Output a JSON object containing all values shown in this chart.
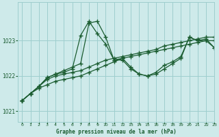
{
  "background_color": "#ceeaea",
  "grid_color": "#9ecece",
  "line_color": "#1a5c30",
  "title": "Graphe pression niveau de la mer (hPa)",
  "xlim": [
    -0.5,
    23
  ],
  "ylim": [
    1020.7,
    1024.1
  ],
  "yticks": [
    1021,
    1022,
    1023
  ],
  "xticks": [
    0,
    1,
    2,
    3,
    4,
    5,
    6,
    7,
    8,
    9,
    10,
    11,
    12,
    13,
    14,
    15,
    16,
    17,
    18,
    19,
    20,
    21,
    22,
    23
  ],
  "series": [
    {
      "x": [
        0,
        1,
        2,
        3,
        4,
        5,
        6,
        7,
        8,
        9,
        10,
        11,
        12,
        13,
        14,
        15,
        16,
        17,
        18,
        19,
        20,
        21,
        22,
        23
      ],
      "y": [
        1021.3,
        1021.5,
        1021.65,
        1021.75,
        1021.85,
        1021.9,
        1021.95,
        1022.0,
        1022.1,
        1022.2,
        1022.3,
        1022.4,
        1022.5,
        1022.55,
        1022.6,
        1022.65,
        1022.7,
        1022.75,
        1022.8,
        1022.85,
        1022.9,
        1022.95,
        1023.0,
        1023.0
      ]
    },
    {
      "x": [
        0,
        1,
        2,
        3,
        4,
        5,
        6,
        7,
        8,
        9,
        10,
        11,
        12,
        13,
        14,
        15,
        16,
        17,
        18,
        19,
        20,
        21,
        22,
        23
      ],
      "y": [
        1021.3,
        1021.5,
        1021.7,
        1021.9,
        1022.0,
        1022.05,
        1022.1,
        1022.15,
        1022.25,
        1022.35,
        1022.45,
        1022.5,
        1022.55,
        1022.6,
        1022.65,
        1022.7,
        1022.75,
        1022.85,
        1022.9,
        1022.95,
        1023.0,
        1023.05,
        1023.1,
        1023.1
      ]
    },
    {
      "x": [
        0,
        1,
        2,
        3,
        4,
        5,
        6,
        7,
        8,
        9,
        10,
        11,
        12,
        13,
        14,
        15,
        16,
        17,
        18,
        19,
        20,
        21,
        22,
        23
      ],
      "y": [
        1021.3,
        1021.5,
        1021.7,
        1021.95,
        1022.05,
        1022.1,
        1022.2,
        1023.15,
        1023.55,
        1023.2,
        1022.9,
        1022.45,
        1022.5,
        1022.25,
        1022.05,
        1022.0,
        1022.1,
        1022.3,
        1022.4,
        1022.55,
        1023.1,
        1023.0,
        1023.05,
        1022.8
      ]
    },
    {
      "x": [
        0,
        1,
        2,
        3,
        4,
        5,
        6,
        7,
        8,
        9,
        10,
        11,
        12,
        13,
        14,
        15,
        16,
        17,
        18,
        19,
        20,
        21,
        22,
        23
      ],
      "y": [
        1021.3,
        1021.5,
        1021.7,
        1021.95,
        1022.05,
        1022.15,
        1022.25,
        1022.35,
        1023.5,
        1023.55,
        1023.1,
        1022.45,
        1022.45,
        1022.2,
        1022.05,
        1022.0,
        1022.05,
        1022.2,
        1022.35,
        1022.5,
        1023.1,
        1023.0,
        1023.0,
        1022.8
      ]
    }
  ],
  "marker": "+",
  "marker_size": 4,
  "linewidth": 0.9
}
